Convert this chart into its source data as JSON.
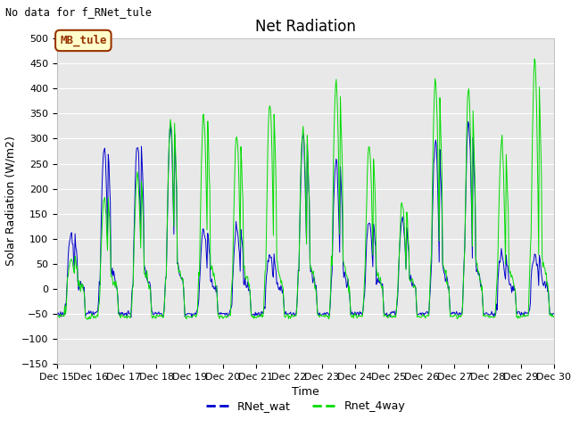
{
  "title": "Net Radiation",
  "ylabel": "Solar Radiation (W/m2)",
  "xlabel": "Time",
  "no_data_text": "No data for f_RNet_tule",
  "annotation_text": "MB_tule",
  "ylim": [
    -150,
    500
  ],
  "xlim": [
    0,
    360
  ],
  "yticks": [
    -150,
    -100,
    -50,
    0,
    50,
    100,
    150,
    200,
    250,
    300,
    350,
    400,
    450,
    500
  ],
  "xtick_labels": [
    "Dec 15",
    "Dec 16",
    "Dec 17",
    "Dec 18",
    "Dec 19",
    "Dec 20",
    "Dec 21",
    "Dec 22",
    "Dec 23",
    "Dec 24",
    "Dec 25",
    "Dec 26",
    "Dec 27",
    "Dec 28",
    "Dec 29",
    "Dec 30"
  ],
  "xtick_positions": [
    0,
    24,
    48,
    72,
    96,
    120,
    144,
    168,
    192,
    216,
    240,
    264,
    288,
    312,
    336,
    360
  ],
  "line1_color": "#0000cc",
  "line2_color": "#00dd00",
  "line1_label": "RNet_wat",
  "line2_label": "Rnet_4way",
  "fig_bg_color": "#ffffff",
  "plot_bg_color": "#e8e8e8",
  "title_fontsize": 12,
  "label_fontsize": 9,
  "tick_fontsize": 8,
  "annotation_bg": "#ffffcc",
  "annotation_border": "#993300",
  "annotation_text_color": "#993300",
  "grid_color": "#ffffff"
}
